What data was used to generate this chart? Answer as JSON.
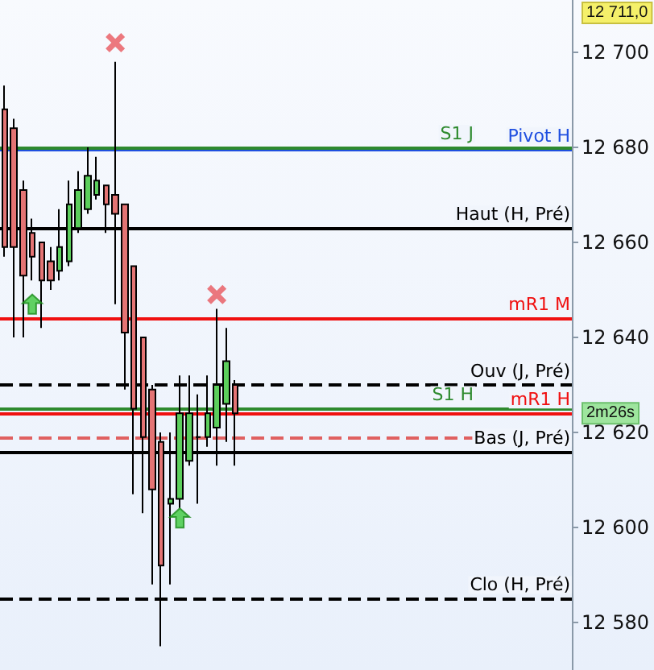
{
  "chart_data": {
    "type": "candlestick",
    "categories": [
      null,
      null,
      null,
      null,
      null,
      null,
      null,
      null,
      null,
      null,
      null,
      null,
      null,
      null,
      null,
      null,
      null,
      null,
      null,
      null,
      null,
      null,
      null,
      null,
      null,
      null,
      null,
      null,
      null,
      null,
      null,
      null,
      null,
      null,
      null,
      null,
      null,
      null,
      null,
      null,
      null,
      null,
      null,
      null,
      null,
      null,
      null,
      null,
      null,
      null,
      null,
      null,
      null,
      null,
      null,
      null,
      null,
      null,
      null,
      null,
      null,
      null
    ],
    "tick_labels": "y",
    "ylim": [
      12570,
      12711
    ],
    "yticks": [
      {
        "value": 12580,
        "label": "12 580"
      },
      {
        "value": 12600,
        "label": "12 600"
      },
      {
        "value": 12620,
        "label": "12 620"
      },
      {
        "value": 12640,
        "label": "12 640"
      },
      {
        "value": 12660,
        "label": "12 660"
      },
      {
        "value": 12680,
        "label": "12 680"
      },
      {
        "value": 12700,
        "label": "12 700"
      }
    ],
    "grid": false,
    "series": [
      {
        "type": "candlestick",
        "ohlc": [
          [
            12688,
            12693,
            12657,
            12659
          ],
          [
            12684,
            12686,
            12640,
            12659
          ],
          [
            12671,
            12673,
            12640,
            12653
          ],
          [
            12662,
            12665,
            12652,
            12657
          ],
          [
            12660,
            12660,
            12642,
            12652
          ],
          [
            12656,
            12659,
            12650,
            12652
          ],
          [
            12654,
            12667,
            12652,
            12659
          ],
          [
            12656,
            12673,
            12655,
            12668
          ],
          [
            12663,
            12675,
            12662,
            12671
          ],
          [
            12667,
            12680,
            12666,
            12674
          ],
          [
            12670,
            12678,
            12669,
            12673
          ],
          [
            12672,
            12672,
            12662,
            12668
          ],
          [
            12670,
            12698,
            12647,
            12666
          ],
          [
            12668,
            12668,
            12629,
            12641
          ],
          [
            12655,
            12655,
            12607,
            12625
          ],
          [
            12640,
            12640,
            12603,
            12619
          ],
          [
            12629,
            12630,
            12588,
            12608
          ],
          [
            12618,
            12620,
            12575,
            12592
          ],
          [
            12605,
            12620,
            12588,
            12606
          ],
          [
            12606,
            12632,
            12604,
            12624
          ],
          [
            12614,
            12632,
            12613,
            12624
          ],
          [
            12619,
            12628,
            12605,
            12619
          ],
          [
            12619,
            12632,
            12617,
            12624
          ],
          [
            12621,
            12646,
            12613,
            12630
          ],
          [
            12626,
            12642,
            12618,
            12635
          ],
          [
            12630,
            12631,
            12613,
            12624
          ],
          null,
          null,
          null,
          null,
          null,
          null,
          null,
          null,
          null,
          null,
          null,
          null,
          null,
          null,
          null,
          null,
          null,
          null,
          null,
          null,
          null,
          null,
          null,
          null,
          null,
          null,
          null,
          null,
          null,
          null,
          null,
          null,
          null,
          null,
          null,
          null
        ],
        "colors": [
          "#e47474",
          "#e47474",
          "#e47474",
          "#e47474",
          "#e47474",
          "#e47474",
          "#5ccf5c",
          "#5ccf5c",
          "#5ccf5c",
          "#5ccf5c",
          "#5ccf5c",
          "#e47474",
          "#e47474",
          "#e47474",
          "#e47474",
          "#e47474",
          "#e47474",
          "#e47474",
          "#5ccf5c",
          "#5ccf5c",
          "#5ccf5c",
          "#000000",
          "#5ccf5c",
          "#5ccf5c",
          "#5ccf5c",
          "#e47474",
          null,
          null,
          null,
          null,
          null,
          null,
          null,
          null,
          null,
          null,
          null,
          null,
          null,
          null,
          null,
          null,
          null,
          null,
          null,
          null,
          null,
          null,
          null,
          null,
          null,
          null,
          null,
          null,
          null,
          null,
          null,
          null,
          null,
          null,
          null,
          null
        ]
      },
      {
        "type": "scatter",
        "marker": "cross",
        "color": "#e8585e",
        "values": [
          null,
          null,
          null,
          null,
          null,
          null,
          null,
          null,
          null,
          null,
          null,
          null,
          12702,
          null,
          null,
          null,
          null,
          null,
          null,
          null,
          null,
          null,
          null,
          12649,
          null,
          null,
          null,
          null,
          null,
          null,
          null,
          null,
          null,
          null,
          null,
          null,
          null,
          null,
          null,
          null,
          null,
          null,
          null,
          null,
          null,
          null,
          null,
          null,
          null,
          null,
          null,
          null,
          null,
          null,
          null,
          null,
          null,
          null,
          null,
          null,
          null,
          null
        ]
      },
      {
        "type": "scatter",
        "marker": "triangle",
        "color": "#3cc83c",
        "values": [
          null,
          null,
          null,
          12647,
          null,
          null,
          null,
          null,
          null,
          null,
          null,
          null,
          null,
          null,
          null,
          null,
          null,
          null,
          null,
          12602,
          null,
          null,
          null,
          null,
          null,
          null,
          null,
          null,
          null,
          null,
          null,
          null,
          null,
          null,
          null,
          null,
          null,
          null,
          null,
          null,
          null,
          null,
          null,
          null,
          null,
          null,
          null,
          null,
          null,
          null,
          null,
          null,
          null,
          null,
          null,
          null,
          null,
          null,
          null,
          null,
          null,
          null
        ]
      }
    ],
    "ref_lines": [
      {
        "axis": "y",
        "value": 12679.5,
        "label": "Pivot H",
        "color": "#1f4fe0",
        "line_style": "solid"
      },
      {
        "axis": "y",
        "value": 12680,
        "label": "S1 J",
        "color": "#2e8a2e",
        "line_style": "solid"
      },
      {
        "axis": "y",
        "value": 12663,
        "label": "Haut (H, Pré)",
        "color": "#000000",
        "line_style": "solid"
      },
      {
        "axis": "y",
        "value": 12644,
        "label": "mR1 M",
        "color": "#f01010",
        "line_style": "solid"
      },
      {
        "axis": "y",
        "value": 12630,
        "label": "Ouv (J, Pré)",
        "color": "#000000",
        "line_style": "dashed"
      },
      {
        "axis": "y",
        "value": 12624,
        "label": "mR1 H",
        "color": "#f01010",
        "line_style": "solid"
      },
      {
        "axis": "y",
        "value": 12625,
        "label": "S1 H",
        "color": "#2e8a2e",
        "line_style": "solid"
      },
      {
        "axis": "y",
        "value": 12619,
        "color": "#e06060",
        "line_style": "dashed"
      },
      {
        "axis": "y",
        "value": 12616,
        "label": "Bas (J, Pré)",
        "color": "#000000",
        "line_style": "solid"
      },
      {
        "axis": "y",
        "value": 12585,
        "label": "Clo (H, Pré)",
        "color": "#000000",
        "line_style": "dashed"
      }
    ],
    "annotations": [
      "12 711,0",
      "2m26s"
    ]
  }
}
